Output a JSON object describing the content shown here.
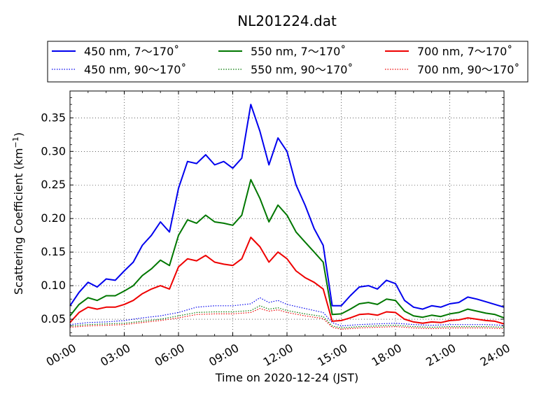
{
  "chart_data": {
    "type": "line",
    "title": "NL201224.dat",
    "xlabel": "Time on 2020-12-24 (JST)",
    "ylabel": "Scattering Coefficient (km",
    "ylabel_sup": "−1",
    "ylabel_tail": ")",
    "xlim": [
      "00:00",
      "24:00"
    ],
    "ylim": [
      0.025,
      0.39
    ],
    "x_ticks": [
      "00:00",
      "03:00",
      "06:00",
      "09:00",
      "12:00",
      "15:00",
      "18:00",
      "21:00",
      "24:00"
    ],
    "y_ticks": [
      "0.05",
      "0.10",
      "0.15",
      "0.20",
      "0.25",
      "0.30",
      "0.35"
    ],
    "grid": true,
    "legend_position": "top",
    "series": [
      {
        "name": "450 nm, 7～170˚",
        "color": "#0000ee",
        "style": "solid",
        "x": [
          "00:00",
          "00:30",
          "01:00",
          "01:30",
          "02:00",
          "02:30",
          "03:00",
          "03:30",
          "04:00",
          "04:30",
          "05:00",
          "05:30",
          "06:00",
          "06:30",
          "07:00",
          "07:30",
          "08:00",
          "08:30",
          "09:00",
          "09:30",
          "10:00",
          "10:30",
          "11:00",
          "11:30",
          "12:00",
          "12:30",
          "13:00",
          "13:30",
          "14:00",
          "14:30",
          "15:00",
          "15:30",
          "16:00",
          "16:30",
          "17:00",
          "17:30",
          "18:00",
          "18:30",
          "19:00",
          "19:30",
          "20:00",
          "20:30",
          "21:00",
          "21:30",
          "22:00",
          "22:30",
          "23:00",
          "23:30",
          "24:00"
        ],
        "values": [
          0.07,
          0.09,
          0.105,
          0.098,
          0.11,
          0.108,
          0.122,
          0.135,
          0.16,
          0.175,
          0.195,
          0.18,
          0.245,
          0.285,
          0.282,
          0.295,
          0.28,
          0.285,
          0.275,
          0.29,
          0.37,
          0.33,
          0.28,
          0.32,
          0.3,
          0.25,
          0.22,
          0.185,
          0.16,
          0.07,
          0.07,
          0.085,
          0.098,
          0.1,
          0.095,
          0.108,
          0.103,
          0.078,
          0.068,
          0.065,
          0.07,
          0.068,
          0.073,
          0.075,
          0.083,
          0.08,
          0.076,
          0.072,
          0.068
        ]
      },
      {
        "name": "450 nm, 90～170˚",
        "color": "#0000ee",
        "style": "dotted",
        "x": [
          "00:00",
          "01:00",
          "02:00",
          "03:00",
          "04:00",
          "05:00",
          "06:00",
          "07:00",
          "08:00",
          "09:00",
          "10:00",
          "10:30",
          "11:00",
          "11:30",
          "12:00",
          "13:00",
          "14:00",
          "14:30",
          "15:00",
          "16:00",
          "17:00",
          "18:00",
          "19:00",
          "20:00",
          "21:00",
          "22:00",
          "23:00",
          "24:00"
        ],
        "values": [
          0.042,
          0.045,
          0.046,
          0.048,
          0.052,
          0.055,
          0.06,
          0.068,
          0.07,
          0.07,
          0.073,
          0.082,
          0.075,
          0.078,
          0.072,
          0.066,
          0.06,
          0.045,
          0.04,
          0.042,
          0.043,
          0.044,
          0.042,
          0.041,
          0.042,
          0.042,
          0.042,
          0.041
        ]
      },
      {
        "name": "550 nm, 7～170˚",
        "color": "#007700",
        "style": "solid",
        "x": [
          "00:00",
          "00:30",
          "01:00",
          "01:30",
          "02:00",
          "02:30",
          "03:00",
          "03:30",
          "04:00",
          "04:30",
          "05:00",
          "05:30",
          "06:00",
          "06:30",
          "07:00",
          "07:30",
          "08:00",
          "08:30",
          "09:00",
          "09:30",
          "10:00",
          "10:30",
          "11:00",
          "11:30",
          "12:00",
          "12:30",
          "13:00",
          "13:30",
          "14:00",
          "14:30",
          "15:00",
          "15:30",
          "16:00",
          "16:30",
          "17:00",
          "17:30",
          "18:00",
          "18:30",
          "19:00",
          "19:30",
          "20:00",
          "20:30",
          "21:00",
          "21:30",
          "22:00",
          "22:30",
          "23:00",
          "23:30",
          "24:00"
        ],
        "values": [
          0.055,
          0.072,
          0.082,
          0.078,
          0.085,
          0.085,
          0.092,
          0.1,
          0.115,
          0.125,
          0.138,
          0.13,
          0.175,
          0.198,
          0.193,
          0.205,
          0.195,
          0.193,
          0.19,
          0.205,
          0.258,
          0.23,
          0.195,
          0.22,
          0.205,
          0.18,
          0.165,
          0.15,
          0.135,
          0.057,
          0.058,
          0.065,
          0.073,
          0.075,
          0.072,
          0.08,
          0.078,
          0.062,
          0.055,
          0.053,
          0.056,
          0.054,
          0.058,
          0.06,
          0.065,
          0.062,
          0.059,
          0.057,
          0.052
        ]
      },
      {
        "name": "550 nm, 90～170˚",
        "color": "#007700",
        "style": "dotted",
        "x": [
          "00:00",
          "01:00",
          "02:00",
          "03:00",
          "04:00",
          "05:00",
          "06:00",
          "07:00",
          "08:00",
          "09:00",
          "10:00",
          "10:30",
          "11:00",
          "11:30",
          "12:00",
          "13:00",
          "14:00",
          "14:30",
          "15:00",
          "16:00",
          "17:00",
          "18:00",
          "19:00",
          "20:00",
          "21:00",
          "22:00",
          "23:00",
          "24:00"
        ],
        "values": [
          0.04,
          0.042,
          0.043,
          0.044,
          0.047,
          0.05,
          0.055,
          0.06,
          0.061,
          0.061,
          0.063,
          0.07,
          0.065,
          0.067,
          0.063,
          0.058,
          0.054,
          0.04,
          0.037,
          0.039,
          0.04,
          0.041,
          0.039,
          0.038,
          0.039,
          0.039,
          0.039,
          0.038
        ]
      },
      {
        "name": "700 nm, 7～170˚",
        "color": "#ee0000",
        "style": "solid",
        "x": [
          "00:00",
          "00:30",
          "01:00",
          "01:30",
          "02:00",
          "02:30",
          "03:00",
          "03:30",
          "04:00",
          "04:30",
          "05:00",
          "05:30",
          "06:00",
          "06:30",
          "07:00",
          "07:30",
          "08:00",
          "08:30",
          "09:00",
          "09:30",
          "10:00",
          "10:30",
          "11:00",
          "11:30",
          "12:00",
          "12:30",
          "13:00",
          "13:30",
          "14:00",
          "14:30",
          "15:00",
          "15:30",
          "16:00",
          "16:30",
          "17:00",
          "17:30",
          "18:00",
          "18:30",
          "19:00",
          "19:30",
          "20:00",
          "20:30",
          "21:00",
          "21:30",
          "22:00",
          "22:30",
          "23:00",
          "23:30",
          "24:00"
        ],
        "values": [
          0.045,
          0.06,
          0.068,
          0.065,
          0.068,
          0.068,
          0.072,
          0.078,
          0.088,
          0.095,
          0.1,
          0.095,
          0.128,
          0.14,
          0.137,
          0.145,
          0.135,
          0.132,
          0.13,
          0.14,
          0.172,
          0.158,
          0.135,
          0.15,
          0.14,
          0.122,
          0.112,
          0.105,
          0.095,
          0.047,
          0.048,
          0.052,
          0.057,
          0.058,
          0.056,
          0.061,
          0.06,
          0.05,
          0.046,
          0.044,
          0.046,
          0.045,
          0.048,
          0.049,
          0.052,
          0.05,
          0.048,
          0.047,
          0.043
        ]
      },
      {
        "name": "700 nm, 90～170˚",
        "color": "#ee0000",
        "style": "dotted",
        "x": [
          "00:00",
          "01:00",
          "02:00",
          "03:00",
          "04:00",
          "05:00",
          "06:00",
          "07:00",
          "08:00",
          "09:00",
          "10:00",
          "10:30",
          "11:00",
          "11:30",
          "12:00",
          "13:00",
          "14:00",
          "14:30",
          "15:00",
          "16:00",
          "17:00",
          "18:00",
          "19:00",
          "20:00",
          "21:00",
          "22:00",
          "23:00",
          "24:00"
        ],
        "values": [
          0.038,
          0.04,
          0.041,
          0.042,
          0.045,
          0.048,
          0.052,
          0.057,
          0.058,
          0.058,
          0.06,
          0.066,
          0.062,
          0.064,
          0.06,
          0.055,
          0.051,
          0.038,
          0.035,
          0.037,
          0.038,
          0.039,
          0.037,
          0.036,
          0.037,
          0.037,
          0.037,
          0.036
        ]
      }
    ]
  }
}
